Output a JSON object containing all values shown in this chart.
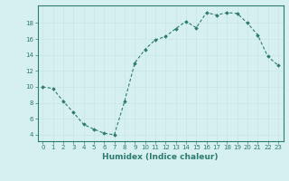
{
  "x": [
    0,
    1,
    2,
    3,
    4,
    5,
    6,
    7,
    8,
    9,
    10,
    11,
    12,
    13,
    14,
    15,
    16,
    17,
    18,
    19,
    20,
    21,
    22,
    23
  ],
  "y": [
    10,
    9.8,
    8.2,
    6.8,
    5.3,
    4.7,
    4.2,
    4.0,
    8.2,
    13.0,
    14.7,
    15.9,
    16.3,
    17.3,
    18.2,
    17.4,
    19.3,
    19.0,
    19.3,
    19.2,
    18.0,
    16.5,
    13.8,
    12.7
  ],
  "line_color": "#2d7a6e",
  "marker": "D",
  "marker_size": 1.8,
  "line_width": 0.8,
  "bg_color": "#d6f0ef",
  "grid_color": "#c8e8e5",
  "xlabel": "Humidex (Indice chaleur)",
  "xlim": [
    -0.5,
    23.5
  ],
  "ylim": [
    3.2,
    20.2
  ],
  "yticks": [
    4,
    6,
    8,
    10,
    12,
    14,
    16,
    18
  ],
  "xticks": [
    0,
    1,
    2,
    3,
    4,
    5,
    6,
    7,
    8,
    9,
    10,
    11,
    12,
    13,
    14,
    15,
    16,
    17,
    18,
    19,
    20,
    21,
    22,
    23
  ],
  "tick_fontsize": 5.0,
  "xlabel_fontsize": 6.5,
  "tick_color": "#2d7a6e",
  "spine_color": "#2d7a6e"
}
